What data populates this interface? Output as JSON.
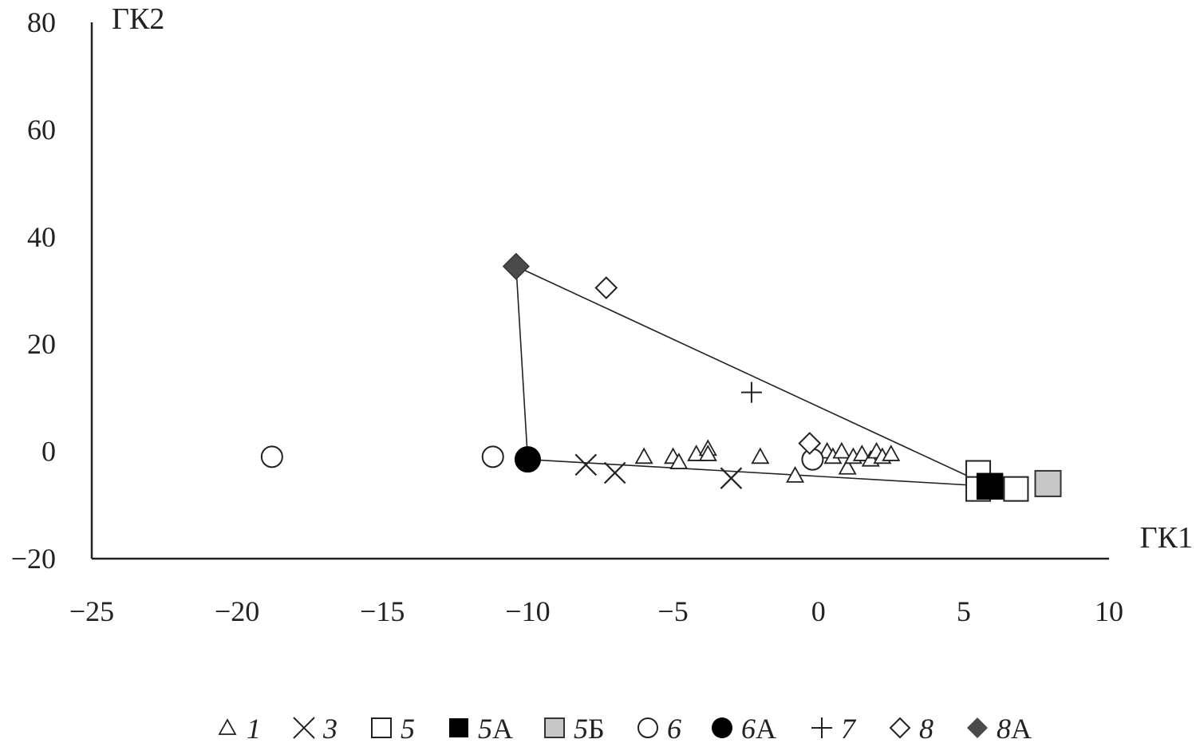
{
  "chart_data": {
    "type": "scatter",
    "xlabel": "ГК1",
    "ylabel": "ГК2",
    "xlim": [
      -25,
      10
    ],
    "ylim": [
      -20,
      80
    ],
    "xticks": [
      -25,
      -20,
      -15,
      -10,
      -5,
      0,
      5,
      10
    ],
    "yticks": [
      -20,
      0,
      20,
      40,
      60,
      80
    ],
    "xtick_labels": [
      "−25",
      "−20",
      "−15",
      "−10",
      "−5",
      "0",
      "5",
      "10"
    ],
    "ytick_labels": [
      "−20",
      "0",
      "20",
      "40",
      "60",
      "80"
    ],
    "grid": false,
    "legend_position": "bottom",
    "series": [
      {
        "name": "1",
        "label_main": "1",
        "label_suffix": "",
        "marker": "triangle-open",
        "color": "#222222",
        "points": [
          [
            -6,
            -1
          ],
          [
            -5,
            -1
          ],
          [
            -4.8,
            -2
          ],
          [
            -4.2,
            -0.5
          ],
          [
            -3.8,
            0.5
          ],
          [
            -3.8,
            -0.5
          ],
          [
            -2,
            -1
          ],
          [
            -0.8,
            -4.5
          ],
          [
            0.3,
            0
          ],
          [
            0.5,
            -1
          ],
          [
            0.8,
            0
          ],
          [
            1,
            -3
          ],
          [
            1.2,
            -1
          ],
          [
            1.5,
            -0.5
          ],
          [
            1.8,
            -1.5
          ],
          [
            2,
            0
          ],
          [
            2.2,
            -1
          ],
          [
            2.5,
            -0.5
          ]
        ]
      },
      {
        "name": "3",
        "label_main": "3",
        "label_suffix": "",
        "marker": "x",
        "color": "#222222",
        "points": [
          [
            -8,
            -2.5
          ],
          [
            -7,
            -4
          ],
          [
            -3,
            -5
          ]
        ]
      },
      {
        "name": "5",
        "label_main": "5",
        "label_suffix": "",
        "marker": "square-open",
        "color": "#222222",
        "points": [
          [
            5.5,
            -4
          ],
          [
            5.5,
            -7
          ],
          [
            6.8,
            -7
          ]
        ]
      },
      {
        "name": "5А",
        "label_main": "5",
        "label_suffix": "А",
        "marker": "square-filled",
        "color": "#000000",
        "points": [
          [
            5.9,
            -6.5
          ]
        ]
      },
      {
        "name": "5Б",
        "label_main": "5",
        "label_suffix": "Б",
        "marker": "square-gray",
        "color": "#c8c8c8",
        "points": [
          [
            7.9,
            -6
          ]
        ]
      },
      {
        "name": "6",
        "label_main": "6",
        "label_suffix": "",
        "marker": "circle-open",
        "color": "#222222",
        "points": [
          [
            -18.8,
            -1
          ],
          [
            -11.2,
            -1
          ],
          [
            -0.2,
            -1.5
          ]
        ]
      },
      {
        "name": "6А",
        "label_main": "6",
        "label_suffix": "А",
        "marker": "circle-filled",
        "color": "#000000",
        "points": [
          [
            -10,
            -1.5
          ]
        ]
      },
      {
        "name": "7",
        "label_main": "7",
        "label_suffix": "",
        "marker": "plus",
        "color": "#222222",
        "points": [
          [
            -2.3,
            11
          ]
        ]
      },
      {
        "name": "8",
        "label_main": "8",
        "label_suffix": "",
        "marker": "diamond-open",
        "color": "#222222",
        "points": [
          [
            -7.3,
            30.5
          ],
          [
            -0.3,
            1.5
          ]
        ]
      },
      {
        "name": "8А",
        "label_main": "8",
        "label_suffix": "А",
        "marker": "diamond-filled",
        "color": "#4a4a4a",
        "points": [
          [
            -10.4,
            34.5
          ]
        ]
      }
    ],
    "annotations": {
      "triangle": [
        [
          -10.4,
          34.5
        ],
        [
          5.9,
          -6.5
        ],
        [
          -10,
          -1.5
        ]
      ]
    }
  }
}
